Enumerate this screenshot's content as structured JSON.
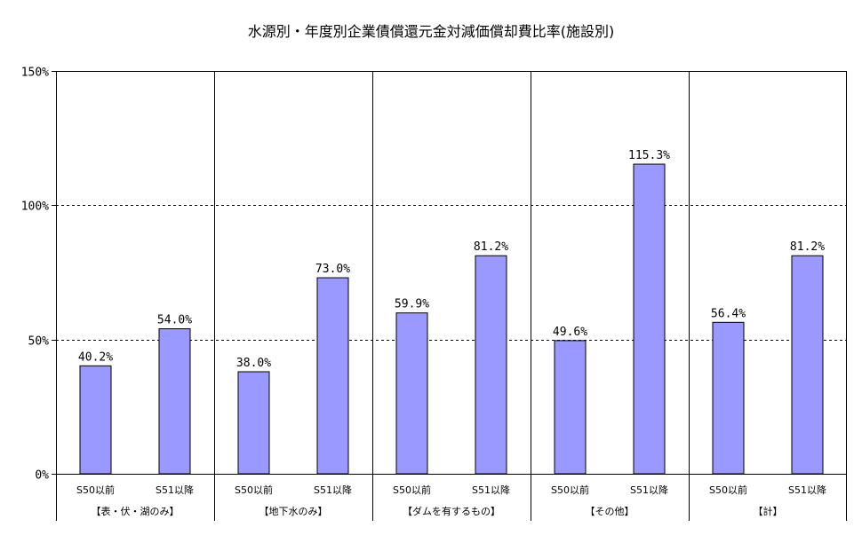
{
  "chart_data": {
    "type": "bar",
    "title": "水源別・年度別企業債償還元金対減価償却費比率(施設別)",
    "xlabel": "",
    "ylabel": "",
    "ylim": [
      0,
      150
    ],
    "yticks": [
      0,
      50,
      100,
      150
    ],
    "ytick_labels": [
      "0%",
      "50%",
      "100%",
      "150%"
    ],
    "grid": "dashed horizontal at 50% and 100%",
    "legend": "none",
    "bar_color": "#9999ff",
    "groups": [
      {
        "label": "【表・伏・湖のみ】",
        "bars": [
          {
            "category": "S50以前",
            "value": 40.2,
            "label": "40.2%"
          },
          {
            "category": "S51以降",
            "value": 54.0,
            "label": "54.0%"
          }
        ]
      },
      {
        "label": "【地下水のみ】",
        "bars": [
          {
            "category": "S50以前",
            "value": 38.0,
            "label": "38.0%"
          },
          {
            "category": "S51以降",
            "value": 73.0,
            "label": "73.0%"
          }
        ]
      },
      {
        "label": "【ダムを有するもの】",
        "bars": [
          {
            "category": "S50以前",
            "value": 59.9,
            "label": "59.9%"
          },
          {
            "category": "S51以降",
            "value": 81.2,
            "label": "81.2%"
          }
        ]
      },
      {
        "label": "【その他】",
        "bars": [
          {
            "category": "S50以前",
            "value": 49.6,
            "label": "49.6%"
          },
          {
            "category": "S51以降",
            "value": 115.3,
            "label": "115.3%"
          }
        ]
      },
      {
        "label": "【計】",
        "bars": [
          {
            "category": "S50以前",
            "value": 56.4,
            "label": "56.4%"
          },
          {
            "category": "S51以降",
            "value": 81.2,
            "label": "81.2%"
          }
        ]
      }
    ]
  }
}
